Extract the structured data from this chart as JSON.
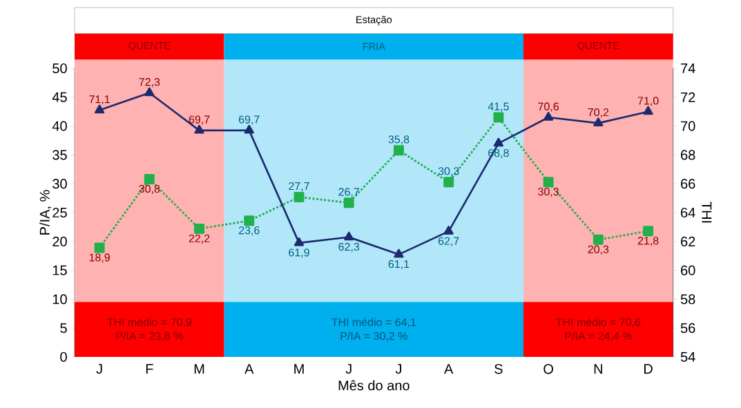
{
  "chart_data": {
    "type": "line",
    "xlabel": "Mês do ano",
    "ylabel": "P/IA, %",
    "y2label": "THI",
    "categories": [
      "J",
      "F",
      "M",
      "A",
      "M",
      "J",
      "J",
      "A",
      "S",
      "O",
      "N",
      "D"
    ],
    "series": [
      {
        "color": "#22b04a",
        "marker": "square",
        "line_style": "dotted",
        "values": [
          18.9,
          30.8,
          22.2,
          23.6,
          27.7,
          26.7,
          35.8,
          30.3,
          41.5,
          30.3,
          20.3,
          21.8
        ],
        "value_labels": [
          "18,9",
          "30,8",
          "22,2",
          "23,6",
          "27,7",
          "26,7",
          "35,8",
          "30,3",
          "41,5",
          "30,3",
          "20,3",
          "21,8"
        ]
      },
      {
        "color": "#1c2a6e",
        "marker": "triangle",
        "line_style": "solid",
        "axis": "y2",
        "values": [
          71.1,
          72.3,
          69.7,
          69.7,
          61.9,
          62.3,
          61.1,
          62.7,
          68.8,
          70.6,
          70.2,
          71.0
        ],
        "value_labels": [
          "71,1",
          "72,3",
          "69,7",
          "69,7",
          "61,9",
          "62,3",
          "61,1",
          "62,7",
          "68,8",
          "70,6",
          "70,2",
          "71,0"
        ]
      }
    ],
    "ylim": [
      0,
      50
    ],
    "yticks": [
      0,
      5,
      10,
      15,
      20,
      25,
      30,
      35,
      40,
      45,
      50
    ],
    "y2lim": [
      54,
      74
    ],
    "y2ticks": [
      54,
      56,
      58,
      60,
      62,
      64,
      66,
      68,
      70,
      72,
      74
    ],
    "bands": [
      {
        "axis": "x",
        "from": "J",
        "to": "M",
        "label": "QUENTE",
        "color": "#ffb2b2"
      },
      {
        "axis": "x",
        "from": "A",
        "to": "S",
        "label": "FRIA",
        "color": "#b2e7fa"
      },
      {
        "axis": "x",
        "from": "O",
        "to": "D",
        "label": "QUENTE",
        "color": "#ffb2b2"
      }
    ],
    "annotations": [
      "Estação",
      "THI médio = 70,9",
      "P/IA = 23,8 %",
      "THI médio = 64,1",
      "P/IA = 30,2 %",
      "THI médio = 70,6",
      "P/IA = 24,4 %"
    ],
    "grid": false
  }
}
